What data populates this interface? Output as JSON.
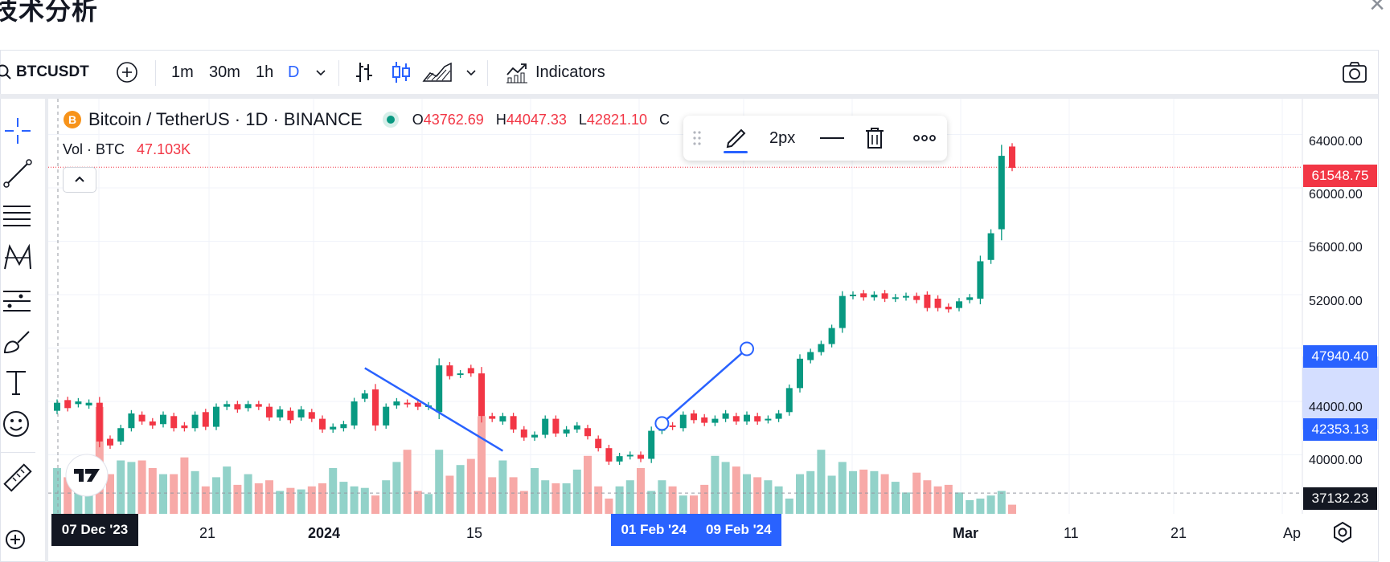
{
  "page": {
    "title": "技术分析",
    "close_label": "×"
  },
  "toolbar": {
    "symbol": "BTCUSDT",
    "intervals": [
      "1m",
      "30m",
      "1h",
      "D"
    ],
    "indicators_label": "Indicators",
    "icons": [
      "search-icon",
      "add-symbol-icon",
      "chevron-down-icon",
      "bar-chart-icon",
      "candles-icon",
      "area-chart-icon",
      "indicators-icon",
      "camera-icon"
    ]
  },
  "legend": {
    "title": "Bitcoin / TetherUS · 1D · BINANCE",
    "o_label": "O",
    "o": "43762.69",
    "h_label": "H",
    "h": "44047.33",
    "l_label": "L",
    "l": "42821.10",
    "c_label": "C",
    "vol_label": "Vol · BTC",
    "vol_value": "47.103K"
  },
  "drawing_toolbar": {
    "width_label": "2px",
    "icons": [
      "drag-handle-icon",
      "pencil-icon",
      "line-style-icon",
      "trash-icon",
      "more-icon"
    ]
  },
  "colors": {
    "up": "#089981",
    "down": "#f23645",
    "accent": "#2962ff",
    "vol_up": "#92d2c9",
    "vol_down": "#f7a9a7"
  },
  "price_axis": {
    "ticks": [
      "64000.00",
      "60000.00",
      "56000.00",
      "52000.00",
      "44000.00",
      "40000.00"
    ],
    "labels": {
      "current": "61548.75",
      "upper": "47940.40",
      "lower": "42353.13",
      "crosshair": "37132.23"
    }
  },
  "time_axis": {
    "ticks": [
      "21",
      "2024",
      "15",
      "Mar",
      "11",
      "21",
      "Ap"
    ],
    "labels": {
      "crosshair": "07 Dec '23",
      "range_start": "01 Feb '24",
      "range_end": "09 Feb '24"
    }
  },
  "chart_data": {
    "type": "candlestick",
    "symbol": "BTCUSDT",
    "interval": "1D",
    "price_range": [
      37132.23,
      65000
    ],
    "candles": [
      {
        "o": 43300,
        "c": 43900
      },
      {
        "o": 44100,
        "c": 43500
      },
      {
        "o": 43800,
        "c": 44000
      },
      {
        "o": 43700,
        "c": 43900
      },
      {
        "o": 43900,
        "c": 41000
      },
      {
        "o": 41200,
        "c": 40700
      },
      {
        "o": 41000,
        "c": 42000
      },
      {
        "o": 42000,
        "c": 43100
      },
      {
        "o": 43000,
        "c": 42500
      },
      {
        "o": 42500,
        "c": 42200
      },
      {
        "o": 42300,
        "c": 43000
      },
      {
        "o": 42900,
        "c": 42000
      },
      {
        "o": 42200,
        "c": 42000
      },
      {
        "o": 42000,
        "c": 43000
      },
      {
        "o": 43200,
        "c": 42100
      },
      {
        "o": 42100,
        "c": 43600
      },
      {
        "o": 43600,
        "c": 43800
      },
      {
        "o": 43800,
        "c": 43400
      },
      {
        "o": 43500,
        "c": 43800
      },
      {
        "o": 43800,
        "c": 43600
      },
      {
        "o": 43600,
        "c": 42800
      },
      {
        "o": 42800,
        "c": 43400
      },
      {
        "o": 43300,
        "c": 42600
      },
      {
        "o": 42800,
        "c": 43400
      },
      {
        "o": 43200,
        "c": 42700
      },
      {
        "o": 42700,
        "c": 41900
      },
      {
        "o": 41900,
        "c": 42100
      },
      {
        "o": 42000,
        "c": 42300
      },
      {
        "o": 42200,
        "c": 44000
      },
      {
        "o": 44200,
        "c": 44600
      },
      {
        "o": 44900,
        "c": 42200
      },
      {
        "o": 42200,
        "c": 43600
      },
      {
        "o": 43700,
        "c": 44000
      },
      {
        "o": 43900,
        "c": 43800
      },
      {
        "o": 43900,
        "c": 43600
      },
      {
        "o": 43600,
        "c": 43700
      },
      {
        "o": 43200,
        "c": 46700
      },
      {
        "o": 46700,
        "c": 45900
      },
      {
        "o": 46000,
        "c": 46100
      },
      {
        "o": 46500,
        "c": 46100
      },
      {
        "o": 46100,
        "c": 42900
      },
      {
        "o": 42900,
        "c": 42700
      },
      {
        "o": 42500,
        "c": 42900
      },
      {
        "o": 42900,
        "c": 41900
      },
      {
        "o": 41900,
        "c": 41300
      },
      {
        "o": 41300,
        "c": 41500
      },
      {
        "o": 41500,
        "c": 42700
      },
      {
        "o": 42700,
        "c": 41600
      },
      {
        "o": 41600,
        "c": 41900
      },
      {
        "o": 41900,
        "c": 42200
      },
      {
        "o": 42000,
        "c": 41400
      },
      {
        "o": 41200,
        "c": 40500
      },
      {
        "o": 40500,
        "c": 39500
      },
      {
        "o": 39500,
        "c": 39900
      },
      {
        "o": 39900,
        "c": 40000
      },
      {
        "o": 40000,
        "c": 39700
      },
      {
        "o": 39700,
        "c": 41800
      },
      {
        "o": 41800,
        "c": 42200
      },
      {
        "o": 42200,
        "c": 42100
      },
      {
        "o": 42000,
        "c": 43000
      },
      {
        "o": 43100,
        "c": 42600
      },
      {
        "o": 42800,
        "c": 42400
      },
      {
        "o": 42400,
        "c": 42700
      },
      {
        "o": 42700,
        "c": 43100
      },
      {
        "o": 42900,
        "c": 42500
      },
      {
        "o": 42500,
        "c": 43000
      },
      {
        "o": 42900,
        "c": 42500
      },
      {
        "o": 42600,
        "c": 42700
      },
      {
        "o": 42700,
        "c": 43100
      },
      {
        "o": 43200,
        "c": 45000
      },
      {
        "o": 45000,
        "c": 47200
      },
      {
        "o": 47100,
        "c": 47700
      },
      {
        "o": 47700,
        "c": 48300
      },
      {
        "o": 48300,
        "c": 49500
      },
      {
        "o": 49500,
        "c": 51900
      },
      {
        "o": 51900,
        "c": 52000
      },
      {
        "o": 52100,
        "c": 51800
      },
      {
        "o": 51800,
        "c": 52000
      },
      {
        "o": 52100,
        "c": 51700
      },
      {
        "o": 51700,
        "c": 51800
      },
      {
        "o": 51800,
        "c": 51900
      },
      {
        "o": 51900,
        "c": 51600
      },
      {
        "o": 52000,
        "c": 51000
      },
      {
        "o": 51700,
        "c": 51000
      },
      {
        "o": 51100,
        "c": 50900
      },
      {
        "o": 51000,
        "c": 51500
      },
      {
        "o": 51600,
        "c": 51800
      },
      {
        "o": 51700,
        "c": 54500
      },
      {
        "o": 54600,
        "c": 56600
      },
      {
        "o": 56900,
        "c": 62400
      },
      {
        "o": 63100,
        "c": 61500
      }
    ],
    "volumes": [
      30,
      24,
      22,
      24,
      70,
      26,
      35,
      34,
      35,
      30,
      26,
      26,
      37,
      28,
      18,
      24,
      31,
      19,
      26,
      20,
      22,
      15,
      17,
      16,
      18,
      20,
      30,
      21,
      18,
      17,
      12,
      22,
      34,
      42,
      15,
      13,
      42,
      25,
      32,
      36,
      64,
      24,
      35,
      24,
      15,
      30,
      22,
      20,
      20,
      29,
      38,
      18,
      10,
      18,
      22,
      30,
      15,
      22,
      18,
      12,
      12,
      19,
      38,
      34,
      31,
      26,
      24,
      22,
      18,
      10,
      26,
      28,
      42,
      25,
      34,
      28,
      29,
      28,
      26,
      21,
      14,
      27,
      22,
      18,
      19,
      14,
      9,
      10,
      12,
      15,
      6
    ],
    "drawings": [
      {
        "type": "trend_line",
        "from": {
          "x_index": 29,
          "price": 46500
        },
        "to": {
          "x_index": 42,
          "price": 40300
        }
      },
      {
        "type": "trend_line",
        "from": {
          "x_index": 57,
          "price": 42353.13
        },
        "to": {
          "x_index": 65,
          "price": 47940.4
        }
      }
    ]
  },
  "left_toolbar": {
    "icons": [
      "crosshair-icon",
      "trend-line-icon",
      "fib-retracement-icon",
      "pattern-icon",
      "prediction-icon",
      "brush-icon",
      "text-icon",
      "emoji-icon",
      "ruler-icon",
      "zoom-in-icon"
    ]
  }
}
